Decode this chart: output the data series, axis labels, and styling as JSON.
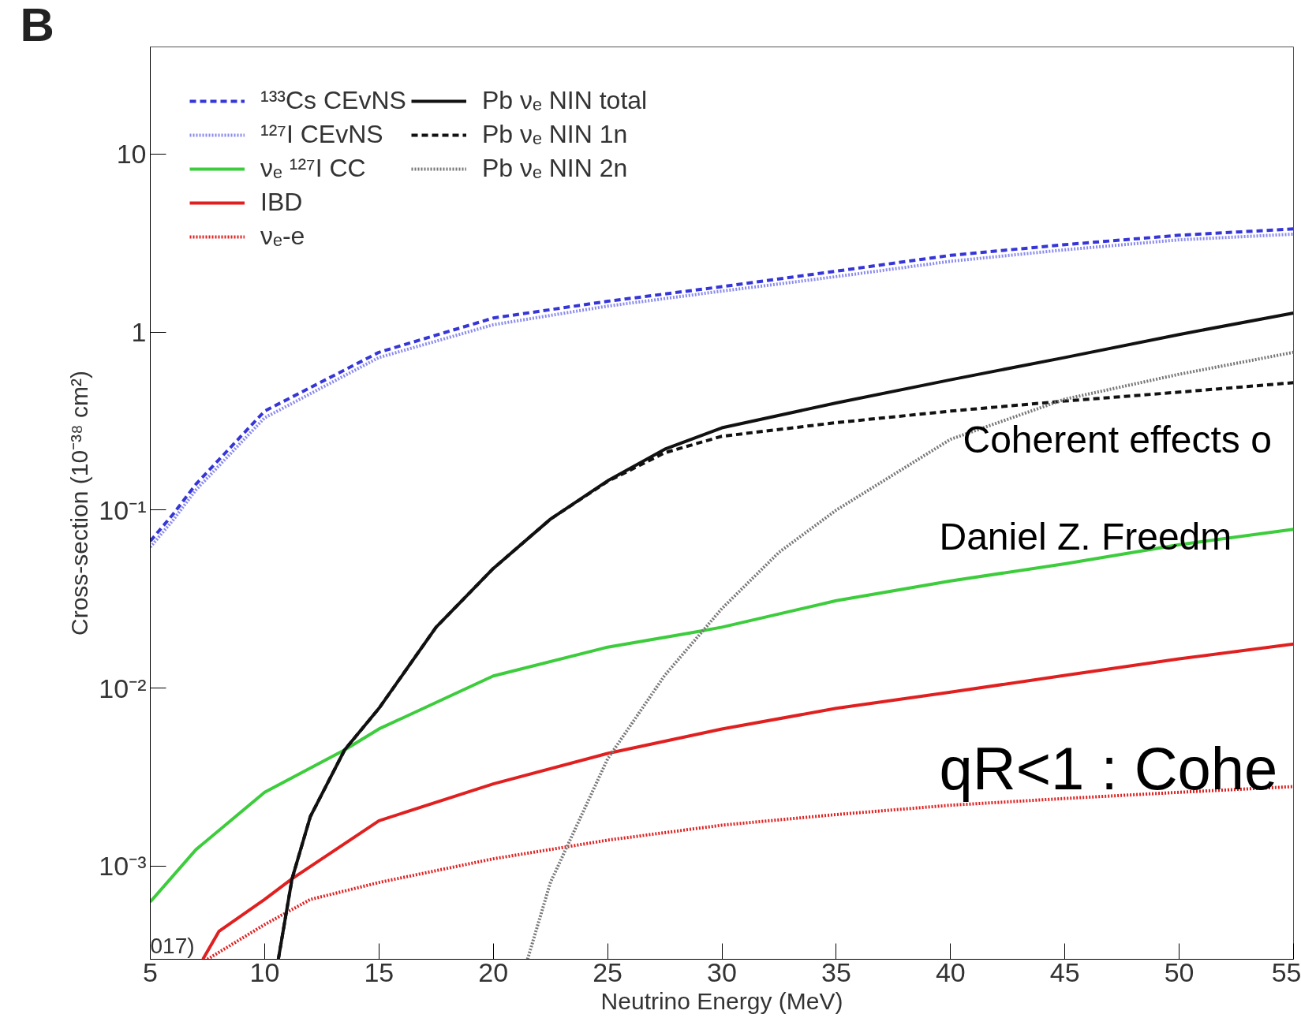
{
  "chart_data": {
    "type": "line",
    "xlabel": "Neutrino Energy (MeV)",
    "ylabel": "Cross-section (10⁻³⁸ cm²)",
    "log": "y",
    "xlim": [
      5,
      55
    ],
    "ylim": [
      0.0003,
      40
    ],
    "xticks": [
      5,
      10,
      15,
      20,
      25,
      30,
      35,
      40,
      45,
      50,
      55
    ],
    "yticks": [
      {
        "value": 0.001,
        "label": "10⁻³"
      },
      {
        "value": 0.01,
        "label": "10⁻²"
      },
      {
        "value": 0.1,
        "label": "10⁻¹"
      },
      1,
      10
    ],
    "grid": false,
    "legend": "top left",
    "annotations": [
      "B",
      "Coherent effects o",
      "Daniel Z. Freedm",
      "qR<1 : Cohe",
      "017)"
    ],
    "series": [
      {
        "name": "¹³³Cs CEvNS",
        "color": "#3535d8",
        "line_style": "dashed",
        "x": [
          5,
          6,
          7,
          10,
          15,
          20,
          25,
          30,
          35,
          40,
          45,
          50,
          55
        ],
        "values": [
          0.067,
          0.095,
          0.14,
          0.36,
          0.77,
          1.2,
          1.49,
          1.8,
          2.2,
          2.7,
          3.1,
          3.5,
          3.8
        ]
      },
      {
        "name": "¹²⁷I CEvNS",
        "color": "#8a8af0",
        "line_style": "dotted",
        "x": [
          5,
          6,
          7,
          10,
          15,
          20,
          25,
          30,
          35,
          40,
          45,
          50,
          55
        ],
        "values": [
          0.062,
          0.088,
          0.13,
          0.33,
          0.72,
          1.1,
          1.4,
          1.7,
          2.05,
          2.5,
          2.9,
          3.3,
          3.55
        ]
      },
      {
        "name": "νₑ ¹²⁷I CC",
        "color": "#3ccc3c",
        "line_style": "solid",
        "x": [
          5,
          7,
          10,
          13.5,
          15,
          20,
          25,
          28.6,
          30,
          35,
          40,
          45,
          50,
          55
        ],
        "values": [
          0.00063,
          0.00124,
          0.0026,
          0.0045,
          0.0059,
          0.0117,
          0.017,
          0.0204,
          0.022,
          0.031,
          0.04,
          0.05,
          0.064,
          0.078
        ]
      },
      {
        "name": "IBD",
        "color": "#e02020",
        "line_style": "solid",
        "x": [
          7.3,
          8,
          10,
          11.2,
          15,
          20,
          25,
          30,
          35,
          40,
          45,
          50,
          55
        ],
        "values": [
          0.0003,
          0.00043,
          0.00065,
          0.00085,
          0.0018,
          0.0029,
          0.0043,
          0.0059,
          0.0077,
          0.0095,
          0.0118,
          0.0146,
          0.0177
        ]
      },
      {
        "name": "νₑ-e",
        "color": "#e02020",
        "line_style": "dotted",
        "x": [
          7.5,
          10,
          12,
          15,
          20,
          25,
          30,
          35,
          40,
          45,
          50,
          55
        ],
        "values": [
          0.0003,
          0.00047,
          0.00065,
          0.00081,
          0.0011,
          0.0014,
          0.0017,
          0.00195,
          0.0022,
          0.0024,
          0.0026,
          0.0028
        ]
      },
      {
        "name": "Pb νₑ NIN total",
        "color": "#111111",
        "line_style": "solid",
        "x": [
          10.6,
          11.2,
          12,
          13.5,
          15,
          17.5,
          20,
          22.5,
          25,
          27.5,
          30,
          35,
          40,
          45,
          50,
          55
        ],
        "values": [
          0.0003,
          0.00085,
          0.0019,
          0.0045,
          0.0077,
          0.022,
          0.047,
          0.089,
          0.146,
          0.22,
          0.29,
          0.4,
          0.54,
          0.72,
          0.97,
          1.28
        ]
      },
      {
        "name": "Pb νₑ NIN 1n",
        "color": "#111111",
        "line_style": "dashed",
        "x": [
          10.6,
          11.2,
          12,
          13.5,
          15,
          17.5,
          20,
          22.5,
          25,
          27.5,
          30,
          35,
          40,
          45,
          50,
          55
        ],
        "values": [
          0.0003,
          0.00085,
          0.0019,
          0.0045,
          0.0077,
          0.022,
          0.047,
          0.089,
          0.145,
          0.21,
          0.26,
          0.31,
          0.36,
          0.41,
          0.46,
          0.52
        ]
      },
      {
        "name": "Pb νₑ NIN 2n",
        "color": "#777777",
        "line_style": "dotted",
        "x": [
          21.5,
          22.5,
          25,
          27.5,
          30,
          32.5,
          35,
          40,
          45,
          50,
          55
        ],
        "values": [
          0.0003,
          0.00081,
          0.004,
          0.0118,
          0.028,
          0.058,
          0.1,
          0.25,
          0.42,
          0.58,
          0.77
        ]
      }
    ]
  }
}
